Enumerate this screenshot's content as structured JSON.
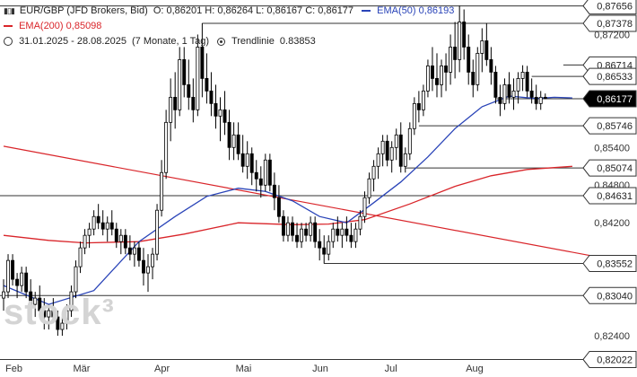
{
  "legend": {
    "symbol": "EUR/GBP (JFD Brokers, Bid)",
    "ohlc": "O: 0,86201  H: 0,86264  L: 0,86167  C: 0,86177",
    "ema50_label": "EMA(50)",
    "ema50_value": "0,86193",
    "ema200_label": "EMA(200)",
    "ema200_value": "0,85098",
    "period": "31.01.2025 - 28.08.2025",
    "interval": "(7 Monate, 1 Tag)",
    "trend_label": "Trendlinie",
    "trend_value": "0.83853"
  },
  "watermark": "stock³",
  "colors": {
    "up": "#ffffff",
    "down": "#000000",
    "ema50": "#2a44b8",
    "ema200": "#d9252a",
    "trendline": "#d9252a",
    "level": "#333333",
    "price_tag": "#000000"
  },
  "chart_data": {
    "type": "candlestick",
    "symbol": "EUR/GBP",
    "ylim": [
      0.82,
      0.8775
    ],
    "x_labels": [
      "Feb",
      "Mär",
      "Apr",
      "Mai",
      "Jun",
      "Jul",
      "Aug"
    ],
    "y_ticks": [
      "0,82400",
      "0,84200",
      "0,84800",
      "0,85400",
      "0,87200"
    ],
    "levels": [
      "0,87656",
      "0,87378",
      "0,86714",
      "0,86533",
      "0,86177",
      "0,85746",
      "0,85074",
      "0,84631",
      "0,83552",
      "0,83040",
      "0,82022"
    ],
    "level_values": [
      0.87656,
      0.87378,
      0.86714,
      0.86533,
      0.86177,
      0.85746,
      0.85074,
      0.84631,
      0.83552,
      0.8304,
      0.82022
    ],
    "level_start_index": [
      null,
      44,
      124,
      117,
      109,
      92,
      89,
      null,
      71,
      null,
      null
    ],
    "current_price": "0,86177",
    "ema50": [
      [
        0,
        0.832
      ],
      [
        10,
        0.829
      ],
      [
        20,
        0.8312
      ],
      [
        30,
        0.839
      ],
      [
        38,
        0.843
      ],
      [
        45,
        0.8462
      ],
      [
        52,
        0.8475
      ],
      [
        58,
        0.847
      ],
      [
        64,
        0.8455
      ],
      [
        70,
        0.843
      ],
      [
        76,
        0.842
      ],
      [
        82,
        0.8452
      ],
      [
        88,
        0.8485
      ],
      [
        94,
        0.8525
      ],
      [
        100,
        0.857
      ],
      [
        106,
        0.8605
      ],
      [
        112,
        0.8622
      ],
      [
        118,
        0.8618
      ],
      [
        122,
        0.862
      ],
      [
        126,
        0.8619
      ]
    ],
    "ema200": [
      [
        0,
        0.84
      ],
      [
        10,
        0.8392
      ],
      [
        18,
        0.8388
      ],
      [
        30,
        0.839
      ],
      [
        40,
        0.8402
      ],
      [
        52,
        0.842
      ],
      [
        64,
        0.8417
      ],
      [
        72,
        0.8418
      ],
      [
        80,
        0.8425
      ],
      [
        90,
        0.845
      ],
      [
        100,
        0.8478
      ],
      [
        108,
        0.8495
      ],
      [
        116,
        0.8505
      ],
      [
        126,
        0.851
      ]
    ],
    "trendline": [
      [
        0,
        0.8542
      ],
      [
        138,
        0.8357
      ]
    ],
    "candles": [
      [
        0.83,
        0.833,
        0.828,
        0.831
      ],
      [
        0.831,
        0.837,
        0.83,
        0.836
      ],
      [
        0.836,
        0.837,
        0.832,
        0.833
      ],
      [
        0.833,
        0.834,
        0.83,
        0.832
      ],
      [
        0.832,
        0.835,
        0.831,
        0.834
      ],
      [
        0.834,
        0.835,
        0.83,
        0.831
      ],
      [
        0.831,
        0.833,
        0.828,
        0.829
      ],
      [
        0.829,
        0.831,
        0.827,
        0.83
      ],
      [
        0.83,
        0.832,
        0.827,
        0.828
      ],
      [
        0.828,
        0.83,
        0.825,
        0.827
      ],
      [
        0.827,
        0.829,
        0.825,
        0.828
      ],
      [
        0.828,
        0.83,
        0.826,
        0.827
      ],
      [
        0.827,
        0.828,
        0.824,
        0.825
      ],
      [
        0.825,
        0.827,
        0.824,
        0.826
      ],
      [
        0.826,
        0.829,
        0.825,
        0.828
      ],
      [
        0.828,
        0.832,
        0.827,
        0.831
      ],
      [
        0.831,
        0.836,
        0.83,
        0.835
      ],
      [
        0.835,
        0.839,
        0.834,
        0.838
      ],
      [
        0.838,
        0.841,
        0.837,
        0.84
      ],
      [
        0.84,
        0.842,
        0.838,
        0.841
      ],
      [
        0.841,
        0.844,
        0.84,
        0.843
      ],
      [
        0.843,
        0.845,
        0.841,
        0.842
      ],
      [
        0.842,
        0.844,
        0.84,
        0.841
      ],
      [
        0.841,
        0.843,
        0.839,
        0.842
      ],
      [
        0.842,
        0.844,
        0.84,
        0.841
      ],
      [
        0.841,
        0.842,
        0.838,
        0.839
      ],
      [
        0.839,
        0.841,
        0.837,
        0.84
      ],
      [
        0.84,
        0.841,
        0.837,
        0.838
      ],
      [
        0.838,
        0.84,
        0.836,
        0.837
      ],
      [
        0.837,
        0.839,
        0.835,
        0.838
      ],
      [
        0.838,
        0.839,
        0.835,
        0.836
      ],
      [
        0.836,
        0.838,
        0.832,
        0.834
      ],
      [
        0.834,
        0.837,
        0.831,
        0.835
      ],
      [
        0.835,
        0.838,
        0.833,
        0.837
      ],
      [
        0.837,
        0.845,
        0.836,
        0.844
      ],
      [
        0.844,
        0.852,
        0.843,
        0.85
      ],
      [
        0.85,
        0.86,
        0.849,
        0.858
      ],
      [
        0.858,
        0.865,
        0.855,
        0.862
      ],
      [
        0.862,
        0.866,
        0.857,
        0.86
      ],
      [
        0.86,
        0.87,
        0.859,
        0.868
      ],
      [
        0.868,
        0.87,
        0.862,
        0.864
      ],
      [
        0.864,
        0.868,
        0.86,
        0.862
      ],
      [
        0.862,
        0.865,
        0.858,
        0.86
      ],
      [
        0.86,
        0.872,
        0.859,
        0.87
      ],
      [
        0.87,
        0.8738,
        0.862,
        0.865
      ],
      [
        0.865,
        0.869,
        0.861,
        0.863
      ],
      [
        0.863,
        0.866,
        0.859,
        0.861
      ],
      [
        0.861,
        0.864,
        0.857,
        0.859
      ],
      [
        0.859,
        0.862,
        0.855,
        0.86
      ],
      [
        0.86,
        0.863,
        0.856,
        0.858
      ],
      [
        0.858,
        0.86,
        0.852,
        0.854
      ],
      [
        0.854,
        0.858,
        0.852,
        0.856
      ],
      [
        0.856,
        0.858,
        0.852,
        0.853
      ],
      [
        0.853,
        0.856,
        0.85,
        0.851
      ],
      [
        0.851,
        0.855,
        0.849,
        0.853
      ],
      [
        0.853,
        0.854,
        0.848,
        0.85
      ],
      [
        0.85,
        0.852,
        0.847,
        0.849
      ],
      [
        0.849,
        0.851,
        0.846,
        0.848
      ],
      [
        0.848,
        0.853,
        0.847,
        0.852
      ],
      [
        0.852,
        0.853,
        0.847,
        0.848
      ],
      [
        0.848,
        0.85,
        0.844,
        0.846
      ],
      [
        0.846,
        0.848,
        0.842,
        0.843
      ],
      [
        0.843,
        0.844,
        0.839,
        0.84
      ],
      [
        0.84,
        0.843,
        0.839,
        0.842
      ],
      [
        0.842,
        0.843,
        0.839,
        0.84
      ],
      [
        0.84,
        0.842,
        0.838,
        0.839
      ],
      [
        0.839,
        0.842,
        0.838,
        0.841
      ],
      [
        0.841,
        0.842,
        0.839,
        0.84
      ],
      [
        0.84,
        0.843,
        0.839,
        0.842
      ],
      [
        0.842,
        0.843,
        0.838,
        0.839
      ],
      [
        0.839,
        0.841,
        0.836,
        0.838
      ],
      [
        0.838,
        0.84,
        0.8355,
        0.837
      ],
      [
        0.837,
        0.84,
        0.836,
        0.839
      ],
      [
        0.839,
        0.842,
        0.838,
        0.841
      ],
      [
        0.841,
        0.843,
        0.839,
        0.84
      ],
      [
        0.84,
        0.842,
        0.838,
        0.841
      ],
      [
        0.841,
        0.843,
        0.839,
        0.84
      ],
      [
        0.84,
        0.842,
        0.838,
        0.839
      ],
      [
        0.839,
        0.842,
        0.838,
        0.841
      ],
      [
        0.841,
        0.844,
        0.84,
        0.843
      ],
      [
        0.843,
        0.847,
        0.842,
        0.846
      ],
      [
        0.846,
        0.85,
        0.845,
        0.849
      ],
      [
        0.849,
        0.852,
        0.847,
        0.851
      ],
      [
        0.851,
        0.854,
        0.849,
        0.853
      ],
      [
        0.853,
        0.856,
        0.851,
        0.855
      ],
      [
        0.855,
        0.856,
        0.851,
        0.852
      ],
      [
        0.852,
        0.855,
        0.85,
        0.854
      ],
      [
        0.854,
        0.857,
        0.852,
        0.856
      ],
      [
        0.856,
        0.858,
        0.85,
        0.851
      ],
      [
        0.851,
        0.854,
        0.85,
        0.853
      ],
      [
        0.853,
        0.858,
        0.852,
        0.857
      ],
      [
        0.857,
        0.862,
        0.856,
        0.861
      ],
      [
        0.861,
        0.863,
        0.858,
        0.86
      ],
      [
        0.86,
        0.864,
        0.859,
        0.863
      ],
      [
        0.863,
        0.868,
        0.862,
        0.867
      ],
      [
        0.867,
        0.87,
        0.863,
        0.865
      ],
      [
        0.865,
        0.869,
        0.862,
        0.864
      ],
      [
        0.864,
        0.868,
        0.862,
        0.867
      ],
      [
        0.867,
        0.869,
        0.863,
        0.866
      ],
      [
        0.866,
        0.872,
        0.864,
        0.87
      ],
      [
        0.87,
        0.874,
        0.865,
        0.868
      ],
      [
        0.868,
        0.8766,
        0.866,
        0.874
      ],
      [
        0.874,
        0.876,
        0.868,
        0.87
      ],
      [
        0.87,
        0.872,
        0.864,
        0.866
      ],
      [
        0.866,
        0.868,
        0.862,
        0.864
      ],
      [
        0.864,
        0.87,
        0.863,
        0.869
      ],
      [
        0.869,
        0.873,
        0.866,
        0.871
      ],
      [
        0.871,
        0.8738,
        0.867,
        0.868
      ],
      [
        0.868,
        0.87,
        0.864,
        0.866
      ],
      [
        0.866,
        0.867,
        0.861,
        0.862
      ],
      [
        0.862,
        0.864,
        0.859,
        0.861
      ],
      [
        0.861,
        0.865,
        0.86,
        0.864
      ],
      [
        0.864,
        0.866,
        0.861,
        0.862
      ],
      [
        0.862,
        0.865,
        0.86,
        0.863
      ],
      [
        0.863,
        0.866,
        0.861,
        0.865
      ],
      [
        0.865,
        0.8671,
        0.863,
        0.866
      ],
      [
        0.866,
        0.867,
        0.862,
        0.863
      ],
      [
        0.863,
        0.865,
        0.861,
        0.862
      ],
      [
        0.862,
        0.864,
        0.86,
        0.861
      ],
      [
        0.861,
        0.863,
        0.86,
        0.862
      ],
      [
        0.862,
        0.8626,
        0.8617,
        0.8618
      ]
    ],
    "x_label_index": [
      0,
      15,
      33,
      51,
      68,
      84,
      102
    ]
  }
}
